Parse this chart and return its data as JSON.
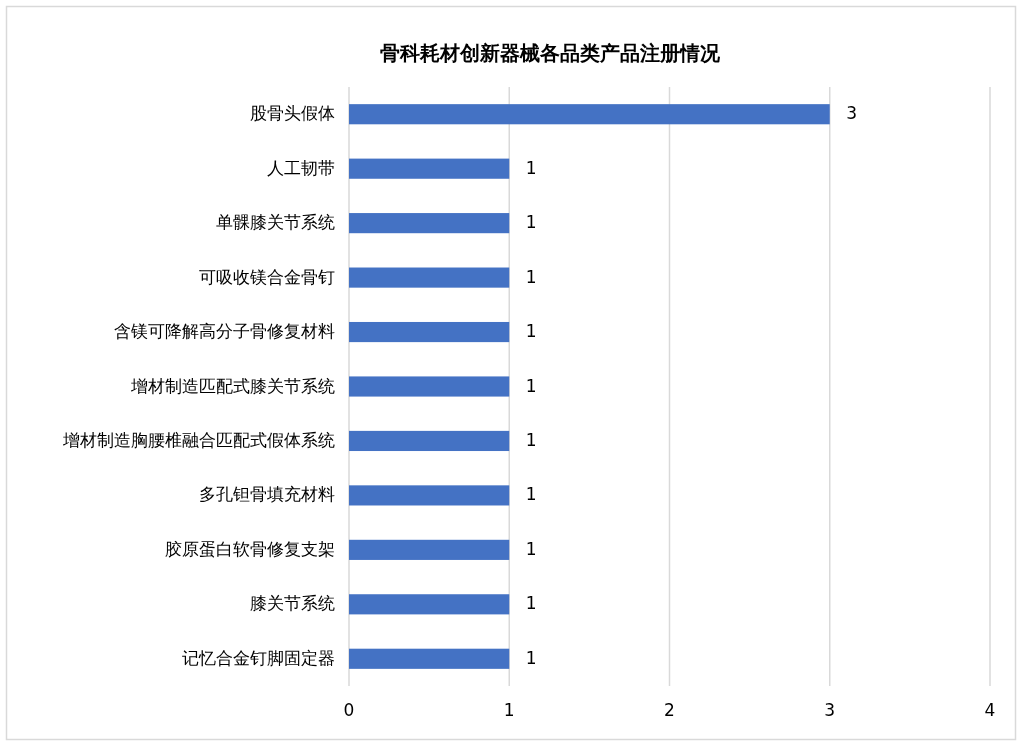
{
  "chart_data": {
    "type": "bar",
    "orientation": "horizontal",
    "title": "骨科耗材创新器械各品类产品注册情况",
    "categories": [
      "股骨头假体",
      "人工韧带",
      "单髁膝关节系统",
      "可吸收镁合金骨钉",
      "含镁可降解高分子骨修复材料",
      "增材制造匹配式膝关节系统",
      "增材制造胸腰椎融合匹配式假体系统",
      "多孔钽骨填充材料",
      "胶原蛋白软骨修复支架",
      "膝关节系统",
      "记忆合金钉脚固定器"
    ],
    "values": [
      3,
      1,
      1,
      1,
      1,
      1,
      1,
      1,
      1,
      1,
      1
    ],
    "color": "#4472c4",
    "xlim": [
      0,
      4
    ],
    "xticks": [
      0,
      1,
      2,
      3,
      4
    ],
    "grid": "x",
    "data_labels": true
  }
}
